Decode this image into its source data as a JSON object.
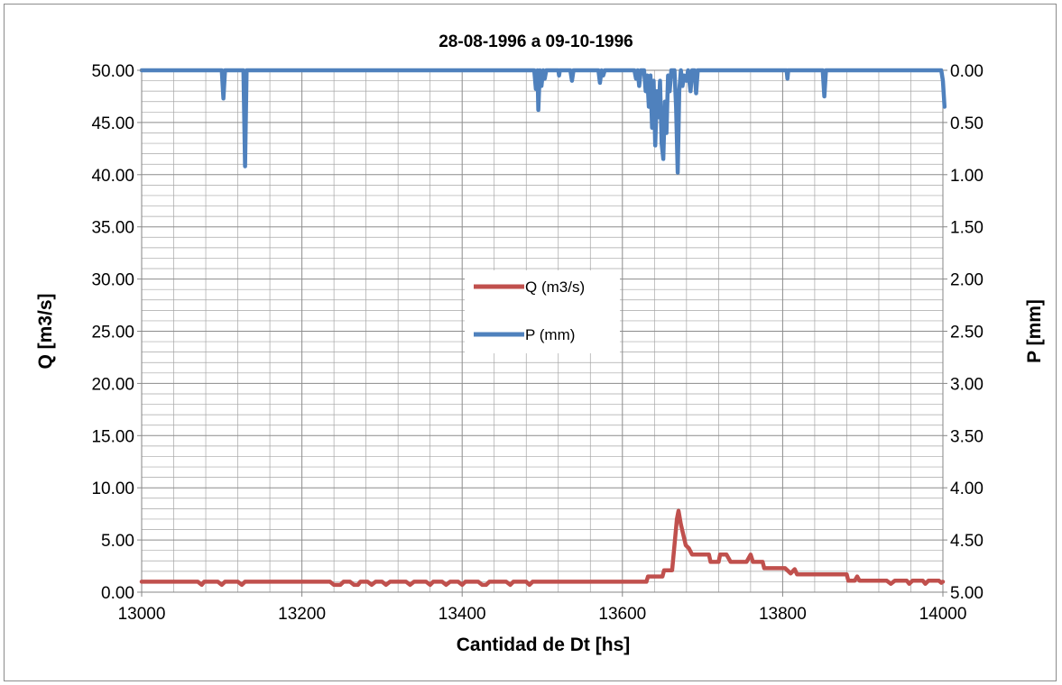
{
  "chart_data": {
    "type": "line",
    "title": "28-08-1996 a 09-10-1996",
    "xlabel": "Cantidad de Dt [hs]",
    "ylabel_left": "Q  [m3/s]",
    "ylabel_right": "P [mm]",
    "xlim": [
      13000,
      14000
    ],
    "ylim_left": [
      0,
      50
    ],
    "ylim_right_inverted": [
      0,
      5
    ],
    "x_ticks": [
      "13000",
      "13200",
      "13400",
      "13600",
      "13800",
      "14000"
    ],
    "y_left_ticks": [
      "0.00",
      "5.00",
      "10.00",
      "15.00",
      "20.00",
      "25.00",
      "30.00",
      "35.00",
      "40.00",
      "45.00",
      "50.00"
    ],
    "y_right_ticks": [
      "5.00",
      "4.50",
      "4.00",
      "3.50",
      "3.00",
      "2.50",
      "2.00",
      "1.50",
      "1.00",
      "0.50",
      "0.00"
    ],
    "grid": true,
    "legend_position": "center",
    "colors": {
      "q": "#c0504d",
      "p": "#4f81bd",
      "grid": "#a6a6a6"
    },
    "series": [
      {
        "name": "Q (m3/s)",
        "axis": "left",
        "points": [
          [
            13000,
            1.0
          ],
          [
            13070,
            1.0
          ],
          [
            13075,
            0.7
          ],
          [
            13078,
            1.0
          ],
          [
            13095,
            1.0
          ],
          [
            13100,
            0.7
          ],
          [
            13104,
            1.0
          ],
          [
            13120,
            1.0
          ],
          [
            13125,
            0.7
          ],
          [
            13129,
            1.0
          ],
          [
            13235,
            1.0
          ],
          [
            13240,
            0.7
          ],
          [
            13248,
            0.7
          ],
          [
            13252,
            1.0
          ],
          [
            13260,
            1.0
          ],
          [
            13265,
            0.7
          ],
          [
            13270,
            0.7
          ],
          [
            13273,
            1.0
          ],
          [
            13282,
            1.0
          ],
          [
            13287,
            0.7
          ],
          [
            13292,
            1.0
          ],
          [
            13300,
            1.0
          ],
          [
            13305,
            0.7
          ],
          [
            13310,
            1.0
          ],
          [
            13330,
            1.0
          ],
          [
            13335,
            0.7
          ],
          [
            13340,
            1.0
          ],
          [
            13355,
            1.0
          ],
          [
            13360,
            0.7
          ],
          [
            13364,
            1.0
          ],
          [
            13375,
            1.0
          ],
          [
            13380,
            0.7
          ],
          [
            13385,
            1.0
          ],
          [
            13395,
            1.0
          ],
          [
            13400,
            0.7
          ],
          [
            13404,
            1.0
          ],
          [
            13420,
            1.0
          ],
          [
            13425,
            0.7
          ],
          [
            13430,
            0.7
          ],
          [
            13434,
            1.0
          ],
          [
            13455,
            1.0
          ],
          [
            13460,
            0.7
          ],
          [
            13464,
            1.0
          ],
          [
            13480,
            1.0
          ],
          [
            13484,
            0.7
          ],
          [
            13488,
            1.0
          ],
          [
            13590,
            1.0
          ],
          [
            13600,
            1.0
          ],
          [
            13605,
            1.0
          ],
          [
            13630,
            1.0
          ],
          [
            13632,
            1.5
          ],
          [
            13650,
            1.5
          ],
          [
            13652,
            2.1
          ],
          [
            13662,
            2.1
          ],
          [
            13665,
            4.5
          ],
          [
            13668,
            7.0
          ],
          [
            13670,
            7.8
          ],
          [
            13673,
            6.5
          ],
          [
            13676,
            5.5
          ],
          [
            13679,
            4.5
          ],
          [
            13683,
            4.2
          ],
          [
            13687,
            3.6
          ],
          [
            13700,
            3.6
          ],
          [
            13708,
            3.6
          ],
          [
            13710,
            2.9
          ],
          [
            13720,
            2.9
          ],
          [
            13722,
            3.6
          ],
          [
            13730,
            3.6
          ],
          [
            13735,
            2.9
          ],
          [
            13755,
            2.9
          ],
          [
            13760,
            3.6
          ],
          [
            13763,
            2.9
          ],
          [
            13775,
            2.9
          ],
          [
            13777,
            2.3
          ],
          [
            13800,
            2.3
          ],
          [
            13803,
            2.3
          ],
          [
            13810,
            1.8
          ],
          [
            13815,
            2.2
          ],
          [
            13818,
            1.7
          ],
          [
            13870,
            1.7
          ],
          [
            13880,
            1.7
          ],
          [
            13882,
            1.1
          ],
          [
            13890,
            1.1
          ],
          [
            13893,
            1.5
          ],
          [
            13896,
            1.1
          ],
          [
            13930,
            1.1
          ],
          [
            13935,
            0.8
          ],
          [
            13940,
            1.1
          ],
          [
            13955,
            1.1
          ],
          [
            13958,
            0.8
          ],
          [
            13962,
            1.1
          ],
          [
            13975,
            1.1
          ],
          [
            13978,
            0.8
          ],
          [
            13982,
            1.1
          ],
          [
            13995,
            1.1
          ],
          [
            13998,
            0.9
          ],
          [
            14000,
            1.0
          ]
        ]
      },
      {
        "name": "P (mm)",
        "axis": "right_inverted",
        "points": [
          [
            13000,
            0.0
          ],
          [
            13100,
            0.0
          ],
          [
            13102,
            0.27
          ],
          [
            13104,
            0.0
          ],
          [
            13127,
            0.0
          ],
          [
            13129,
            0.92
          ],
          [
            13131,
            0.0
          ],
          [
            13490,
            0.0
          ],
          [
            13492,
            0.18
          ],
          [
            13494,
            0.0
          ],
          [
            13495,
            0.38
          ],
          [
            13497,
            0.0
          ],
          [
            13499,
            0.15
          ],
          [
            13501,
            0.0
          ],
          [
            13503,
            0.08
          ],
          [
            13505,
            0.0
          ],
          [
            13520,
            0.0
          ],
          [
            13521,
            0.05
          ],
          [
            13522,
            0.0
          ],
          [
            13535,
            0.0
          ],
          [
            13537,
            0.1
          ],
          [
            13539,
            0.0
          ],
          [
            13570,
            0.0
          ],
          [
            13572,
            0.12
          ],
          [
            13574,
            0.0
          ],
          [
            13576,
            0.05
          ],
          [
            13578,
            0.0
          ],
          [
            13615,
            0.0
          ],
          [
            13617,
            0.08
          ],
          [
            13619,
            0.0
          ],
          [
            13621,
            0.15
          ],
          [
            13623,
            0.0
          ],
          [
            13627,
            0.0
          ],
          [
            13629,
            0.2
          ],
          [
            13631,
            0.05
          ],
          [
            13633,
            0.35
          ],
          [
            13635,
            0.05
          ],
          [
            13637,
            0.55
          ],
          [
            13639,
            0.1
          ],
          [
            13641,
            0.72
          ],
          [
            13643,
            0.2
          ],
          [
            13645,
            0.45
          ],
          [
            13647,
            0.1
          ],
          [
            13649,
            0.7
          ],
          [
            13651,
            0.85
          ],
          [
            13653,
            0.3
          ],
          [
            13655,
            0.6
          ],
          [
            13657,
            0.05
          ],
          [
            13659,
            0.2
          ],
          [
            13661,
            0.0
          ],
          [
            13665,
            0.0
          ],
          [
            13667,
            0.35
          ],
          [
            13669,
            0.98
          ],
          [
            13671,
            0.2
          ],
          [
            13673,
            0.0
          ],
          [
            13675,
            0.15
          ],
          [
            13677,
            0.05
          ],
          [
            13680,
            0.1
          ],
          [
            13682,
            0.0
          ],
          [
            13685,
            0.2
          ],
          [
            13687,
            0.0
          ],
          [
            13690,
            0.0
          ],
          [
            13692,
            0.22
          ],
          [
            13694,
            0.0
          ],
          [
            13805,
            0.0
          ],
          [
            13806,
            0.08
          ],
          [
            13807,
            0.0
          ],
          [
            13850,
            0.0
          ],
          [
            13852,
            0.25
          ],
          [
            13854,
            0.0
          ],
          [
            13998,
            0.0
          ],
          [
            14000,
            0.1
          ],
          [
            14002,
            0.35
          ]
        ]
      }
    ]
  }
}
